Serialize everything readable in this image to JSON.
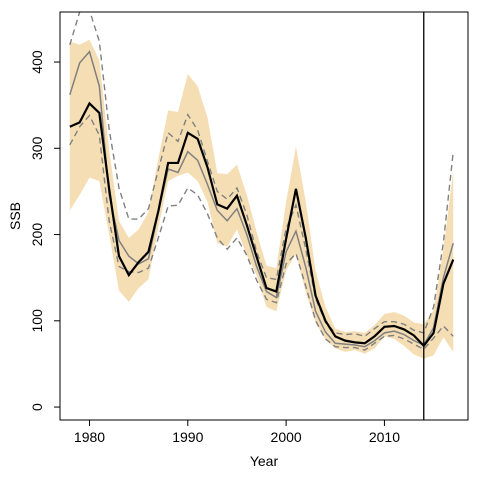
{
  "chart_data": {
    "type": "line",
    "title": "",
    "xlabel": "Year",
    "ylabel": "SSB",
    "xlim": [
      1977,
      2018.5
    ],
    "ylim": [
      -15,
      458
    ],
    "x_ticks": [
      1980,
      1990,
      2000,
      2010
    ],
    "y_ticks": [
      0,
      100,
      200,
      300,
      400
    ],
    "grid": false,
    "legend": "none",
    "x": [
      1978,
      1979,
      1980,
      1981,
      1982,
      1983,
      1984,
      1985,
      1986,
      1987,
      1988,
      1989,
      1990,
      1991,
      1992,
      1993,
      1994,
      1995,
      1996,
      1997,
      1998,
      1999,
      2000,
      2001,
      2002,
      2003,
      2004,
      2005,
      2006,
      2007,
      2008,
      2009,
      2010,
      2011,
      2012,
      2013,
      2014,
      2015,
      2016,
      2017
    ],
    "series": [
      {
        "role": "band",
        "color": "#f5deb3",
        "lower": [
          228,
          246,
          266,
          262,
          200,
          135,
          122,
          138,
          148,
          208,
          262,
          268,
          272,
          262,
          238,
          190,
          186,
          206,
          176,
          153,
          116,
          111,
          158,
          178,
          133,
          98,
          78,
          68,
          64,
          66,
          62,
          68,
          82,
          79,
          71,
          61,
          56,
          60,
          81,
          64
        ],
        "upper": [
          424,
          420,
          426,
          402,
          298,
          216,
          196,
          206,
          226,
          288,
          344,
          342,
          386,
          372,
          336,
          271,
          270,
          281,
          246,
          203,
          164,
          161,
          238,
          302,
          238,
          158,
          116,
          91,
          87,
          88,
          86,
          95,
          108,
          110,
          106,
          98,
          96,
          112,
          183,
          274
        ]
      },
      {
        "role": "line",
        "color": "#000000",
        "values": [
          325,
          330,
          352,
          341,
          253,
          175,
          153,
          168,
          180,
          227,
          283,
          283,
          318,
          311,
          278,
          235,
          230,
          245,
          211,
          174,
          138,
          134,
          195,
          253,
          196,
          129,
          100,
          82,
          77,
          75,
          74,
          82,
          93,
          94,
          90,
          83,
          71,
          86,
          143,
          171
        ]
      },
      {
        "role": "line",
        "color": "#808080",
        "values": [
          362,
          399,
          412,
          372,
          246,
          193,
          175,
          166,
          172,
          226,
          276,
          272,
          296,
          286,
          258,
          228,
          216,
          230,
          200,
          163,
          134,
          127,
          180,
          204,
          162,
          111,
          87,
          74,
          73,
          72,
          70,
          77,
          86,
          88,
          84,
          77,
          72,
          92,
          150,
          190
        ]
      },
      {
        "role": "dashed",
        "color": "#808080",
        "values": [
          304,
          325,
          338,
          315,
          216,
          163,
          157,
          156,
          161,
          196,
          233,
          234,
          254,
          246,
          224,
          196,
          183,
          196,
          176,
          147,
          125,
          121,
          166,
          178,
          140,
          100,
          79,
          70,
          69,
          69,
          66,
          74,
          82,
          83,
          79,
          73,
          67,
          80,
          94,
          82
        ]
      },
      {
        "role": "dashed",
        "color": "#808080",
        "values": [
          420,
          458,
          460,
          424,
          322,
          254,
          218,
          218,
          230,
          275,
          318,
          308,
          339,
          321,
          285,
          250,
          241,
          254,
          223,
          180,
          150,
          148,
          207,
          234,
          183,
          126,
          98,
          86,
          84,
          85,
          82,
          91,
          99,
          99,
          96,
          89,
          86,
          116,
          191,
          296
        ]
      }
    ],
    "vline": {
      "x": 2014,
      "color": "#000000"
    }
  }
}
